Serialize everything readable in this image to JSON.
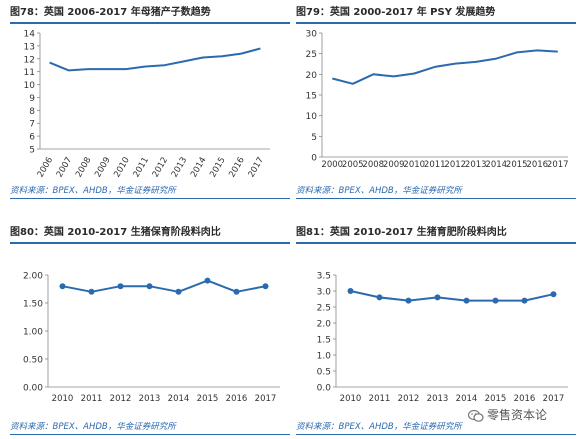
{
  "chart_data": [
    {
      "type": "line",
      "title": "图78：英国 2006-2017 年母猪产子数趋势",
      "source": "资料来源：BPEX、AHDB，华金证券研究所",
      "categories": [
        "2006",
        "2007",
        "2008",
        "2009",
        "2010",
        "2011",
        "2012",
        "2013",
        "2014",
        "2015",
        "2016",
        "2017"
      ],
      "series": [
        {
          "values": [
            11.7,
            11.1,
            11.2,
            11.2,
            11.2,
            11.4,
            11.5,
            11.8,
            12.1,
            12.2,
            12.4,
            12.8
          ]
        }
      ],
      "ylim": [
        5,
        14
      ],
      "yticks": [
        "14",
        "13",
        "12",
        "11",
        "10",
        "9",
        "8",
        "7",
        "6",
        "5"
      ],
      "xlabel": "",
      "ylabel": "",
      "grid": false,
      "rotated_x_labels": true,
      "color": "#2c6ab0"
    },
    {
      "type": "line",
      "title": "图79：英国 2000-2017 年 PSY 发展趋势",
      "source": "资料来源：BPEX、AHDB，华金证券研究所",
      "categories": [
        "2000",
        "2005",
        "2008",
        "2009",
        "2010",
        "2011",
        "2012",
        "2013",
        "2014",
        "2015",
        "2016",
        "2017"
      ],
      "series": [
        {
          "values": [
            19.0,
            17.7,
            20.0,
            19.5,
            20.2,
            21.8,
            22.6,
            23.0,
            23.8,
            25.3,
            25.8,
            25.5
          ]
        }
      ],
      "ylim": [
        0,
        30
      ],
      "yticks": [
        "30",
        "25",
        "20",
        "15",
        "10",
        "5",
        "0"
      ],
      "xlabel": "",
      "ylabel": "",
      "grid": false,
      "rotated_x_labels": false,
      "color": "#2c6ab0"
    },
    {
      "type": "line",
      "title": "图80：英国 2010-2017 生猪保育阶段料肉比",
      "source": "资料来源：BPEX、AHDB，华金证券研究所",
      "categories": [
        "2010",
        "2011",
        "2012",
        "2013",
        "2014",
        "2015",
        "2016",
        "2017"
      ],
      "series": [
        {
          "values": [
            1.8,
            1.7,
            1.8,
            1.8,
            1.7,
            1.9,
            1.7,
            1.8
          ]
        }
      ],
      "ylim": [
        0,
        2
      ],
      "yticks": [
        "2.00",
        "1.50",
        "1.00",
        "0.50",
        "0.00"
      ],
      "xlabel": "",
      "ylabel": "",
      "grid": false,
      "rotated_x_labels": false,
      "color": "#2c6ab0"
    },
    {
      "type": "line",
      "title": "图81：英国 2010-2017 生猪育肥阶段料肉比",
      "source": "资料来源：BPEX、AHDB，华金证券研究所",
      "categories": [
        "2010",
        "2011",
        "2012",
        "2013",
        "2014",
        "2015",
        "2016",
        "2017"
      ],
      "series": [
        {
          "values": [
            3.0,
            2.8,
            2.7,
            2.8,
            2.7,
            2.7,
            2.7,
            2.9
          ]
        }
      ],
      "ylim": [
        0,
        3.5
      ],
      "yticks": [
        "3.5",
        "3.0",
        "2.5",
        "2.0",
        "1.5",
        "1.0",
        "0.5",
        "0.0"
      ],
      "xlabel": "",
      "ylabel": "",
      "grid": false,
      "rotated_x_labels": false,
      "color": "#2c6ab0"
    }
  ],
  "watermark": {
    "text": "零售资本论",
    "icon": "wechat-icon"
  }
}
